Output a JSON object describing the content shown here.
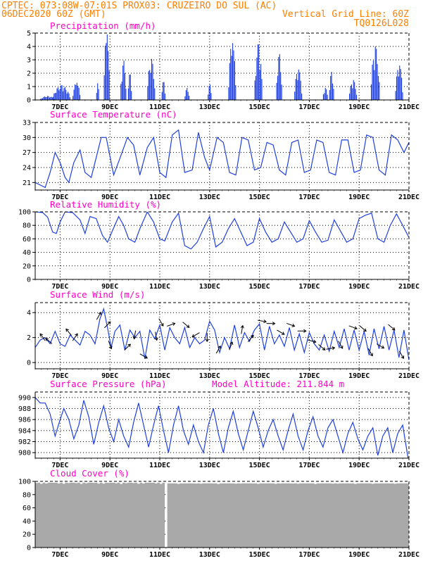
{
  "header": {
    "left_line1": "CPTEC:    073:08W-07:01S   PROX03: CRUZEIRO DO SUL (AC)",
    "left_line2": "06DEC2020 60Z (GMT)",
    "right_line2": "Vertical Grid Line: 60Z",
    "right_line3": "TQ0126L028"
  },
  "colors": {
    "header": "#ff7f00",
    "title": "#ff00c8",
    "series": "#1f3fe0",
    "cloud": "#a9a9a9",
    "arrows": "#000000"
  },
  "x_axis": {
    "start_day": 6.0,
    "end_day": 21.0,
    "tick_days": [
      7,
      9,
      11,
      13,
      15,
      17,
      19,
      21
    ],
    "tick_labels": [
      "7DEC",
      "9DEC",
      "11DEC",
      "13DEC",
      "15DEC",
      "17DEC",
      "19DEC",
      "21DEC"
    ]
  },
  "panels": [
    {
      "key": "precip",
      "title": "Precipitation (mm/h)",
      "title2": "",
      "ylim": [
        0,
        5
      ],
      "yticks": [
        0,
        1,
        2,
        3,
        4,
        5
      ]
    },
    {
      "key": "temp",
      "title": "Surface Temperature (nC)",
      "title2": "",
      "ylim": [
        19.5,
        33
      ],
      "yticks": [
        21,
        24,
        27,
        30,
        33
      ]
    },
    {
      "key": "rh",
      "title": "Relative Humidity (%)",
      "title2": "",
      "ylim": [
        0,
        100
      ],
      "yticks": [
        0,
        20,
        40,
        60,
        80,
        100
      ]
    },
    {
      "key": "wind",
      "title": "Surface Wind (m/s)",
      "title2": "",
      "ylim": [
        -0.5,
        4.8
      ],
      "yticks": [
        0,
        2,
        4
      ]
    },
    {
      "key": "press",
      "title": "Surface Pressure (hPa)",
      "title2": "Model Altitude: 211.844 m",
      "ylim": [
        979,
        991
      ],
      "yticks": [
        980,
        982,
        984,
        986,
        988,
        990
      ]
    },
    {
      "key": "cloud",
      "title": "Cloud Cover (%)",
      "title2": "",
      "ylim": [
        0,
        100
      ],
      "yticks": [
        0,
        20,
        40,
        60,
        80,
        100
      ]
    }
  ],
  "chart_data": [
    {
      "type": "bar",
      "title": "Precipitation (mm/h)",
      "x_unit": "days (DEC 2020)",
      "events": [
        {
          "day": 6.5,
          "peak": 0.3,
          "dur": 0.6
        },
        {
          "day": 7.05,
          "peak": 1.1,
          "dur": 0.7
        },
        {
          "day": 7.65,
          "peak": 1.3,
          "dur": 0.3
        },
        {
          "day": 8.5,
          "peak": 1.25,
          "dur": 0.1
        },
        {
          "day": 8.88,
          "peak": 5.0,
          "dur": 0.25
        },
        {
          "day": 9.55,
          "peak": 3.0,
          "dur": 0.25
        },
        {
          "day": 9.8,
          "peak": 2.0,
          "dur": 0.15
        },
        {
          "day": 10.65,
          "peak": 3.1,
          "dur": 0.3
        },
        {
          "day": 11.15,
          "peak": 1.4,
          "dur": 0.15
        },
        {
          "day": 12.1,
          "peak": 0.9,
          "dur": 0.2
        },
        {
          "day": 13.0,
          "peak": 1.2,
          "dur": 0.15
        },
        {
          "day": 13.9,
          "peak": 4.3,
          "dur": 0.3
        },
        {
          "day": 14.95,
          "peak": 4.2,
          "dur": 0.3
        },
        {
          "day": 15.8,
          "peak": 3.5,
          "dur": 0.25
        },
        {
          "day": 16.55,
          "peak": 2.3,
          "dur": 0.3
        },
        {
          "day": 17.65,
          "peak": 0.9,
          "dur": 0.2
        },
        {
          "day": 17.9,
          "peak": 2.1,
          "dur": 0.2
        },
        {
          "day": 18.75,
          "peak": 1.5,
          "dur": 0.3
        },
        {
          "day": 19.65,
          "peak": 4.0,
          "dur": 0.35
        },
        {
          "day": 20.6,
          "peak": 2.6,
          "dur": 0.3
        }
      ]
    },
    {
      "type": "line",
      "title": "Surface Temperature (nC)",
      "x": [
        6.0,
        6.2,
        6.4,
        6.6,
        6.8,
        7.0,
        7.2,
        7.35,
        7.55,
        7.8,
        8.0,
        8.25,
        8.5,
        8.65,
        8.85,
        9.15,
        9.45,
        9.7,
        9.95,
        10.2,
        10.5,
        10.75,
        11.0,
        11.25,
        11.5,
        11.75,
        12.0,
        12.3,
        12.55,
        12.8,
        13.0,
        13.3,
        13.55,
        13.8,
        14.05,
        14.3,
        14.55,
        14.8,
        15.05,
        15.3,
        15.55,
        15.8,
        16.05,
        16.3,
        16.55,
        16.8,
        17.05,
        17.3,
        17.55,
        17.8,
        18.05,
        18.3,
        18.55,
        18.8,
        19.05,
        19.3,
        19.55,
        19.8,
        20.05,
        20.3,
        20.55,
        20.8,
        21.0
      ],
      "y": [
        21.0,
        20.5,
        20.0,
        23.0,
        27.0,
        25.0,
        22.0,
        21.0,
        25.0,
        27.5,
        23.0,
        22.0,
        27.0,
        30.0,
        30.0,
        22.5,
        26.5,
        30.0,
        28.5,
        22.5,
        28.0,
        30.0,
        23.0,
        22.0,
        30.5,
        31.5,
        23.0,
        23.5,
        31.0,
        26.0,
        23.5,
        30.0,
        29.0,
        23.0,
        22.5,
        30.0,
        29.5,
        23.5,
        24.0,
        29.0,
        28.5,
        23.5,
        22.5,
        29.0,
        29.5,
        23.0,
        23.5,
        29.5,
        29.0,
        23.0,
        22.5,
        29.5,
        29.5,
        23.0,
        23.5,
        30.5,
        30.0,
        23.5,
        22.5,
        30.5,
        29.5,
        27.0,
        29.0
      ]
    },
    {
      "type": "line",
      "title": "Relative Humidity (%)",
      "x": [
        6.0,
        6.3,
        6.5,
        6.7,
        6.85,
        7.0,
        7.2,
        7.5,
        7.8,
        8.0,
        8.2,
        8.45,
        8.7,
        8.9,
        9.1,
        9.35,
        9.55,
        9.75,
        10.0,
        10.2,
        10.5,
        10.75,
        11.0,
        11.2,
        11.5,
        11.75,
        12.0,
        12.25,
        12.5,
        12.75,
        13.0,
        13.25,
        13.5,
        13.75,
        14.0,
        14.25,
        14.5,
        14.75,
        15.0,
        15.25,
        15.5,
        15.75,
        16.0,
        16.25,
        16.5,
        16.75,
        17.0,
        17.25,
        17.5,
        17.75,
        18.0,
        18.25,
        18.5,
        18.75,
        19.0,
        19.25,
        19.5,
        19.75,
        20.0,
        20.25,
        20.5,
        20.75,
        21.0
      ],
      "y": [
        100,
        99,
        92,
        70,
        68,
        85,
        100,
        99,
        88,
        68,
        93,
        90,
        65,
        55,
        72,
        93,
        80,
        60,
        55,
        75,
        100,
        85,
        60,
        57,
        85,
        98,
        50,
        45,
        55,
        75,
        93,
        48,
        55,
        75,
        90,
        70,
        50,
        55,
        90,
        70,
        55,
        60,
        85,
        70,
        55,
        60,
        87,
        70,
        55,
        58,
        88,
        72,
        55,
        60,
        90,
        95,
        98,
        60,
        55,
        80,
        97,
        80,
        62
      ]
    },
    {
      "type": "line",
      "title": "Surface Wind (m/s)",
      "x": [
        6.0,
        6.2,
        6.4,
        6.6,
        6.8,
        7.0,
        7.2,
        7.4,
        7.6,
        7.8,
        8.0,
        8.2,
        8.4,
        8.6,
        8.75,
        8.9,
        9.05,
        9.2,
        9.4,
        9.6,
        9.8,
        10.0,
        10.2,
        10.4,
        10.6,
        10.8,
        11.0,
        11.2,
        11.4,
        11.6,
        11.8,
        12.0,
        12.2,
        12.4,
        12.6,
        12.8,
        13.0,
        13.2,
        13.4,
        13.6,
        13.8,
        14.0,
        14.2,
        14.4,
        14.6,
        14.8,
        15.0,
        15.2,
        15.4,
        15.6,
        15.8,
        16.0,
        16.2,
        16.4,
        16.6,
        16.8,
        17.0,
        17.2,
        17.4,
        17.6,
        17.8,
        18.0,
        18.2,
        18.4,
        18.6,
        18.8,
        19.0,
        19.2,
        19.4,
        19.6,
        19.8,
        20.0,
        20.2,
        20.4,
        20.6,
        20.8,
        21.0
      ],
      "y": [
        1.2,
        1.8,
        2.0,
        1.5,
        2.5,
        1.5,
        1.3,
        2.2,
        1.8,
        1.4,
        2.5,
        2.2,
        1.5,
        3.5,
        4.3,
        2.8,
        1.2,
        2.5,
        3.0,
        1.0,
        2.6,
        2.0,
        2.5,
        0.3,
        2.6,
        1.9,
        3.0,
        1.0,
        2.8,
        2.0,
        1.5,
        2.8,
        1.2,
        2.0,
        1.5,
        1.8,
        3.3,
        2.6,
        0.8,
        2.0,
        1.1,
        3.0,
        1.2,
        2.4,
        1.7,
        2.6,
        3.1,
        1.0,
        2.9,
        1.5,
        2.2,
        1.3,
        2.8,
        1.0,
        2.3,
        0.8,
        2.4,
        1.5,
        1.0,
        2.2,
        0.9,
        2.5,
        1.2,
        2.7,
        1.0,
        2.6,
        1.0,
        2.5,
        0.6,
        2.7,
        1.1,
        2.9,
        1.0,
        2.6,
        0.4,
        2.6,
        0.2
      ]
    },
    {
      "type": "line",
      "title": "Surface Pressure (hPa)",
      "x": [
        6.0,
        6.2,
        6.4,
        6.6,
        6.8,
        7.0,
        7.15,
        7.35,
        7.55,
        7.75,
        7.95,
        8.15,
        8.35,
        8.55,
        8.75,
        8.95,
        9.15,
        9.35,
        9.55,
        9.75,
        9.95,
        10.15,
        10.35,
        10.55,
        10.75,
        10.95,
        11.15,
        11.35,
        11.55,
        11.75,
        11.95,
        12.15,
        12.35,
        12.55,
        12.75,
        12.95,
        13.15,
        13.35,
        13.55,
        13.75,
        13.95,
        14.15,
        14.35,
        14.55,
        14.75,
        14.95,
        15.15,
        15.35,
        15.55,
        15.75,
        15.95,
        16.15,
        16.35,
        16.55,
        16.75,
        16.95,
        17.15,
        17.35,
        17.55,
        17.75,
        17.95,
        18.15,
        18.35,
        18.55,
        18.75,
        18.95,
        19.15,
        19.35,
        19.55,
        19.75,
        19.95,
        20.15,
        20.35,
        20.55,
        20.75,
        21.0
      ],
      "y": [
        990.0,
        989.0,
        989.0,
        987.0,
        983.0,
        986.0,
        988.0,
        986.0,
        982.5,
        985.0,
        989.5,
        986.5,
        981.5,
        985.5,
        988.5,
        984.5,
        982.0,
        986.0,
        983.0,
        981.0,
        985.5,
        989.0,
        985.0,
        981.0,
        985.0,
        988.5,
        984.0,
        980.0,
        985.0,
        988.5,
        984.0,
        981.5,
        985.0,
        982.0,
        980.0,
        985.0,
        988.0,
        983.5,
        980.0,
        984.5,
        987.5,
        983.5,
        980.5,
        984.0,
        987.5,
        984.5,
        981.0,
        984.0,
        986.0,
        983.0,
        980.5,
        984.0,
        987.0,
        983.0,
        980.5,
        984.0,
        986.5,
        983.0,
        981.0,
        984.5,
        986.0,
        983.0,
        980.0,
        983.5,
        985.5,
        982.5,
        980.5,
        983.0,
        984.5,
        979.5,
        983.0,
        984.5,
        980.0,
        983.5,
        985.0,
        978.0
      ]
    },
    {
      "type": "area",
      "title": "Cloud Cover (%)",
      "segments": [
        {
          "from": 6.0,
          "to": 11.2,
          "value": 98
        },
        {
          "from": 11.2,
          "to": 11.3,
          "value": 0
        },
        {
          "from": 11.3,
          "to": 21.0,
          "value": 97
        }
      ]
    }
  ],
  "wind_arrows": [
    {
      "day": 6.3,
      "ang": -125
    },
    {
      "day": 6.55,
      "ang": -140
    },
    {
      "day": 7.35,
      "ang": -130
    },
    {
      "day": 7.6,
      "ang": -55
    },
    {
      "day": 8.55,
      "ang": -60
    },
    {
      "day": 8.9,
      "ang": -45
    },
    {
      "day": 9.0,
      "ang": 70
    },
    {
      "day": 9.7,
      "ang": -45
    },
    {
      "day": 10.0,
      "ang": 100
    },
    {
      "day": 10.35,
      "ang": 30
    },
    {
      "day": 10.85,
      "ang": 80
    },
    {
      "day": 11.05,
      "ang": 60
    },
    {
      "day": 11.45,
      "ang": -20
    },
    {
      "day": 12.05,
      "ang": 40
    },
    {
      "day": 12.45,
      "ang": 150
    },
    {
      "day": 12.9,
      "ang": 90
    },
    {
      "day": 13.35,
      "ang": -60
    },
    {
      "day": 13.85,
      "ang": -70
    },
    {
      "day": 14.3,
      "ang": -80
    },
    {
      "day": 14.65,
      "ang": -50
    },
    {
      "day": 15.1,
      "ang": 10
    },
    {
      "day": 15.45,
      "ang": 0
    },
    {
      "day": 15.85,
      "ang": 30
    },
    {
      "day": 16.25,
      "ang": 20
    },
    {
      "day": 16.7,
      "ang": 0
    },
    {
      "day": 17.1,
      "ang": 15
    },
    {
      "day": 17.5,
      "ang": 40
    },
    {
      "day": 17.85,
      "ang": -10
    },
    {
      "day": 18.25,
      "ang": 60
    },
    {
      "day": 18.75,
      "ang": 20
    },
    {
      "day": 19.15,
      "ang": 40
    },
    {
      "day": 19.45,
      "ang": 60
    },
    {
      "day": 19.85,
      "ang": 30
    },
    {
      "day": 20.3,
      "ang": 40
    },
    {
      "day": 20.7,
      "ang": 60
    }
  ]
}
